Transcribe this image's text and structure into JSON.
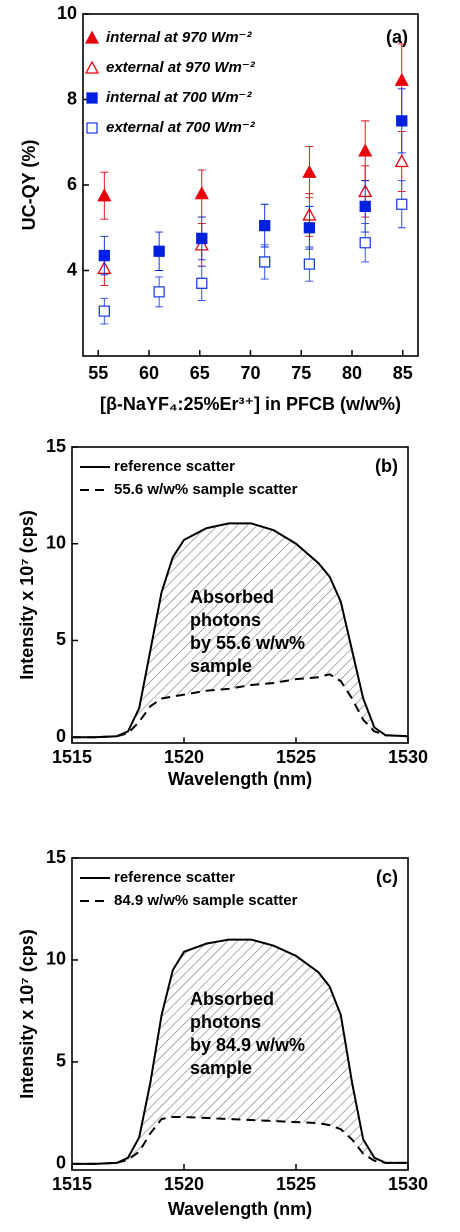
{
  "chart_data": [
    {
      "type": "scatter",
      "label": "(a)",
      "ylabel": "UC-QY (%)",
      "xlabel": "[β-NaYF₄:25%Er³⁺] in PFCB (w/w%)",
      "xlim": [
        53.5,
        86.5
      ],
      "xticks": [
        55,
        60,
        65,
        70,
        75,
        80,
        85
      ],
      "ylim": [
        2,
        10
      ],
      "yticks": [
        4,
        6,
        8,
        10
      ],
      "series": [
        {
          "name": "internal at 970 Wm⁻²",
          "color": "#e8000b",
          "marker": "triangle",
          "filled": true,
          "x": [
            55.6,
            65.2,
            75.8,
            81.3,
            84.9
          ],
          "values": [
            5.75,
            5.8,
            6.3,
            6.8,
            8.45
          ],
          "errors": [
            0.55,
            0.55,
            0.6,
            0.7,
            0.85
          ]
        },
        {
          "name": "external at 970 Wm⁻²",
          "color": "#e8000b",
          "marker": "triangle",
          "filled": false,
          "x": [
            55.6,
            65.2,
            75.8,
            81.3,
            84.9
          ],
          "values": [
            4.05,
            4.6,
            5.3,
            5.85,
            6.55
          ],
          "errors": [
            0.4,
            0.5,
            0.5,
            0.6,
            0.7
          ]
        },
        {
          "name": "internal at 700 Wm⁻²",
          "color": "#0020e0",
          "marker": "square",
          "filled": true,
          "x": [
            55.6,
            61,
            65.2,
            71.4,
            75.8,
            81.3,
            84.9
          ],
          "values": [
            4.35,
            4.45,
            4.75,
            5.05,
            5.0,
            5.5,
            7.5
          ],
          "errors": [
            0.45,
            0.45,
            0.5,
            0.5,
            0.5,
            0.6,
            0.75
          ]
        },
        {
          "name": "external at 700 Wm⁻²",
          "color": "#2040e8",
          "marker": "square",
          "filled": false,
          "x": [
            55.6,
            61,
            65.2,
            71.4,
            75.8,
            81.3,
            84.9
          ],
          "values": [
            3.05,
            3.5,
            3.7,
            4.2,
            4.15,
            4.65,
            5.55
          ],
          "errors": [
            0.3,
            0.35,
            0.4,
            0.4,
            0.4,
            0.45,
            0.55
          ]
        }
      ]
    },
    {
      "type": "line",
      "label": "(b)",
      "ylabel": "Intensity x 10⁷ (cps)",
      "xlabel": "Wavelength (nm)",
      "annotation": [
        "Absorbed",
        "photons",
        "by 55.6 w/w%",
        "sample"
      ],
      "xlim": [
        1515,
        1530
      ],
      "xticks": [
        1515,
        1520,
        1525,
        1530
      ],
      "ylim": [
        -0.3,
        15
      ],
      "yticks": [
        0,
        5,
        10,
        15
      ],
      "x": [
        1515,
        1516,
        1517,
        1517.5,
        1518,
        1518.5,
        1519,
        1519.5,
        1520,
        1521,
        1522,
        1523,
        1524,
        1525,
        1526,
        1526.5,
        1527,
        1527.5,
        1528,
        1528.5,
        1529,
        1530
      ],
      "series": [
        {
          "name": "reference scatter",
          "color": "#000000",
          "linestyle": "solid",
          "values": [
            0,
            0,
            0.05,
            0.3,
            1.5,
            4.5,
            7.5,
            9.3,
            10.2,
            10.8,
            11.05,
            11.05,
            10.7,
            10.0,
            9.0,
            8.3,
            7.0,
            4.5,
            2.0,
            0.5,
            0.1,
            0.05
          ]
        },
        {
          "name": "55.6 w/w% sample scatter",
          "color": "#000000",
          "linestyle": "dashed",
          "values": [
            0,
            0,
            0.05,
            0.2,
            0.8,
            1.6,
            2.0,
            2.1,
            2.2,
            2.4,
            2.5,
            2.7,
            2.8,
            3.0,
            3.1,
            3.25,
            2.9,
            2.0,
            0.9,
            0.3,
            0.1,
            0.05
          ]
        }
      ]
    },
    {
      "type": "line",
      "label": "(c)",
      "ylabel": "Intensity x 10⁷ (cps)",
      "xlabel": "Wavelength (nm)",
      "annotation": [
        "Absorbed",
        "photons",
        "by 84.9 w/w%",
        "sample"
      ],
      "xlim": [
        1515,
        1530
      ],
      "xticks": [
        1515,
        1520,
        1525,
        1530
      ],
      "ylim": [
        -0.3,
        15
      ],
      "yticks": [
        0,
        5,
        10,
        15
      ],
      "x": [
        1515,
        1516,
        1517,
        1517.5,
        1518,
        1518.5,
        1519,
        1519.5,
        1520,
        1521,
        1522,
        1523,
        1524,
        1525,
        1526,
        1526.5,
        1527,
        1527.5,
        1528,
        1528.5,
        1529,
        1530
      ],
      "series": [
        {
          "name": "reference scatter",
          "color": "#000000",
          "linestyle": "solid",
          "values": [
            0,
            0,
            0.05,
            0.3,
            1.3,
            4.0,
            7.3,
            9.5,
            10.4,
            10.8,
            11.0,
            11.0,
            10.7,
            10.2,
            9.4,
            8.7,
            7.3,
            4.0,
            1.2,
            0.3,
            0.05,
            0.05
          ]
        },
        {
          "name": "84.9 w/w% sample scatter",
          "color": "#000000",
          "linestyle": "dashed",
          "values": [
            0,
            0,
            0.05,
            0.2,
            0.6,
            1.5,
            2.2,
            2.3,
            2.3,
            2.25,
            2.2,
            2.15,
            2.1,
            2.05,
            2.0,
            1.9,
            1.7,
            1.2,
            0.5,
            0.15,
            0.05,
            0.05
          ]
        }
      ]
    }
  ]
}
